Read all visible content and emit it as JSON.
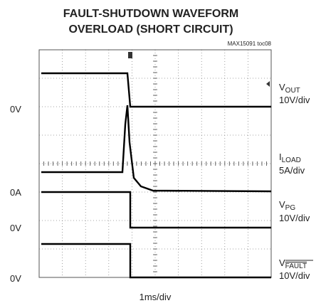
{
  "header": {
    "title_lines": [
      "FAULT-SHUTDOWN WAVEFORM",
      "OVERLOAD (SHORT CIRCUIT)"
    ],
    "code": "MAX15091 toc08"
  },
  "left_labels": [
    "0V",
    "0A",
    "0V",
    "0V"
  ],
  "channels": [
    {
      "name": "V",
      "sub": "OUT",
      "scale": "10V/div"
    },
    {
      "name": "I",
      "sub": "LOAD",
      "scale": "5A/div"
    },
    {
      "name": "V",
      "sub": "PG",
      "scale": "10V/div"
    },
    {
      "name": "V",
      "sub": "FAULT",
      "scale": "10V/div"
    }
  ],
  "time_scale": "1ms/div"
}
